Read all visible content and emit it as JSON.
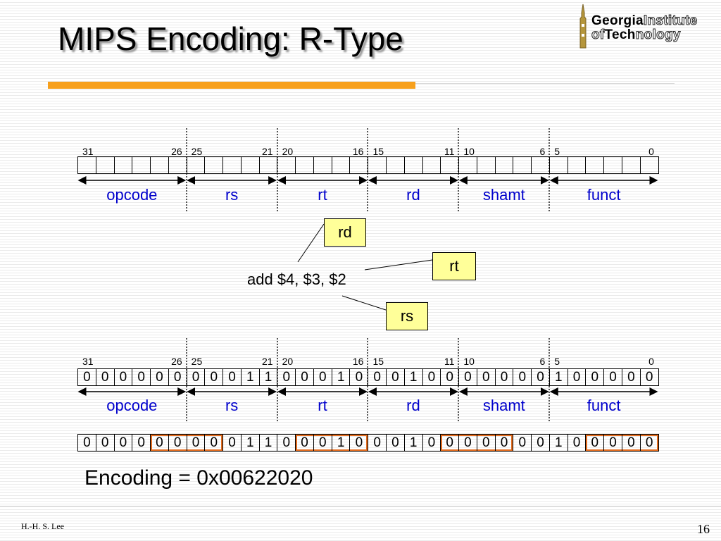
{
  "slide": {
    "title": "MIPS Encoding: R-Type",
    "logo": {
      "word1": "Georgia",
      "word2": "Institute",
      "word3": "of",
      "word4": "Tech",
      "word5": "nology"
    },
    "footer": {
      "author": "H.-H. S. Lee",
      "page": "16"
    }
  },
  "diagram": {
    "fields": [
      {
        "name": "opcode",
        "hi": "31",
        "lo": "26",
        "width": 6
      },
      {
        "name": "rs",
        "hi": "25",
        "lo": "21",
        "width": 5
      },
      {
        "name": "rt",
        "hi": "20",
        "lo": "16",
        "width": 5
      },
      {
        "name": "rd",
        "hi": "15",
        "lo": "11",
        "width": 5
      },
      {
        "name": "shamt",
        "hi": "10",
        "lo": "6",
        "width": 5
      },
      {
        "name": "funct",
        "hi": "5",
        "lo": "0",
        "width": 6
      }
    ],
    "instruction": "add  $4,  $3,  $2",
    "tags": {
      "rd": "rd",
      "rt": "rt",
      "rs": "rs"
    },
    "bits": "00000000011000100010000000100000",
    "encoding": "Encoding = 0x00622020",
    "colors": {
      "field_label": "#0000cc",
      "tag_fill": "#ffff99",
      "nibble_box": "#e46d1f",
      "accent_bar": "#f7a01c"
    }
  }
}
